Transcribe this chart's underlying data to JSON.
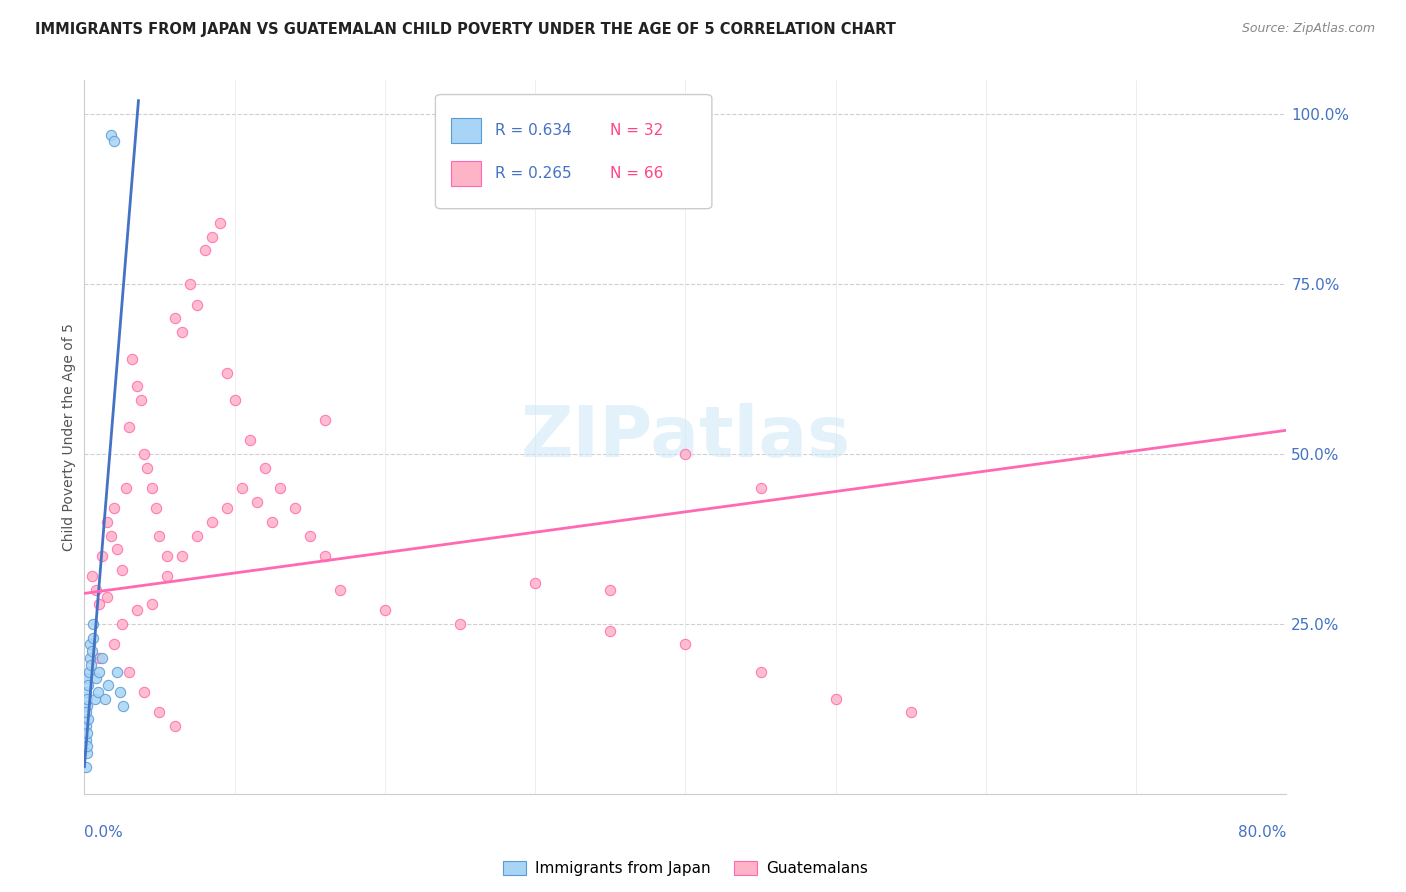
{
  "title": "IMMIGRANTS FROM JAPAN VS GUATEMALAN CHILD POVERTY UNDER THE AGE OF 5 CORRELATION CHART",
  "source": "Source: ZipAtlas.com",
  "ylabel": "Child Poverty Under the Age of 5",
  "right_yticks": [
    "100.0%",
    "75.0%",
    "50.0%",
    "25.0%"
  ],
  "right_ytick_vals": [
    1.0,
    0.75,
    0.5,
    0.25
  ],
  "watermark": "ZIPatlas",
  "background_color": "#ffffff",
  "scatter_japan_color": "#a8d4f5",
  "scatter_japan_edge": "#5b9bd5",
  "scatter_guatemalan_color": "#ffb3c6",
  "scatter_guatemalan_edge": "#ff69b4",
  "line_japan_color": "#4472c4",
  "line_guatemalan_color": "#ff69b4",
  "legend_color1": "#a8d4f5",
  "legend_edge1": "#5b9bd5",
  "legend_color2": "#ffb3c6",
  "legend_edge2": "#ff69b4",
  "xlim": [
    0.0,
    0.8
  ],
  "ylim": [
    0.0,
    1.05
  ],
  "japan_x": [
    0.0008,
    0.0015,
    0.001,
    0.0012,
    0.002,
    0.0018,
    0.0022,
    0.0015,
    0.001,
    0.0008,
    0.0012,
    0.0018,
    0.0025,
    0.003,
    0.0035,
    0.004,
    0.0045,
    0.005,
    0.0055,
    0.006,
    0.007,
    0.008,
    0.009,
    0.01,
    0.012,
    0.014,
    0.016,
    0.018,
    0.02,
    0.022,
    0.024,
    0.026
  ],
  "japan_y": [
    0.04,
    0.06,
    0.08,
    0.1,
    0.07,
    0.09,
    0.11,
    0.13,
    0.15,
    0.17,
    0.12,
    0.14,
    0.16,
    0.18,
    0.2,
    0.22,
    0.19,
    0.21,
    0.23,
    0.25,
    0.14,
    0.17,
    0.15,
    0.18,
    0.2,
    0.14,
    0.16,
    0.97,
    0.96,
    0.18,
    0.15,
    0.13
  ],
  "guatemalan_x": [
    0.005,
    0.008,
    0.01,
    0.012,
    0.015,
    0.018,
    0.02,
    0.022,
    0.025,
    0.028,
    0.03,
    0.032,
    0.035,
    0.038,
    0.04,
    0.042,
    0.045,
    0.048,
    0.05,
    0.055,
    0.06,
    0.065,
    0.07,
    0.075,
    0.08,
    0.085,
    0.09,
    0.095,
    0.1,
    0.11,
    0.12,
    0.13,
    0.14,
    0.15,
    0.16,
    0.17,
    0.2,
    0.25,
    0.3,
    0.35,
    0.4,
    0.45,
    0.01,
    0.02,
    0.03,
    0.04,
    0.05,
    0.06,
    0.025,
    0.035,
    0.015,
    0.045,
    0.055,
    0.065,
    0.075,
    0.085,
    0.095,
    0.105,
    0.115,
    0.125,
    0.35,
    0.4,
    0.45,
    0.5,
    0.55,
    0.16
  ],
  "guatemalan_y": [
    0.32,
    0.3,
    0.28,
    0.35,
    0.4,
    0.38,
    0.42,
    0.36,
    0.33,
    0.45,
    0.54,
    0.64,
    0.6,
    0.58,
    0.5,
    0.48,
    0.45,
    0.42,
    0.38,
    0.35,
    0.7,
    0.68,
    0.75,
    0.72,
    0.8,
    0.82,
    0.84,
    0.62,
    0.58,
    0.52,
    0.48,
    0.45,
    0.42,
    0.38,
    0.35,
    0.3,
    0.27,
    0.25,
    0.31,
    0.3,
    0.5,
    0.45,
    0.2,
    0.22,
    0.18,
    0.15,
    0.12,
    0.1,
    0.25,
    0.27,
    0.29,
    0.28,
    0.32,
    0.35,
    0.38,
    0.4,
    0.42,
    0.45,
    0.43,
    0.4,
    0.24,
    0.22,
    0.18,
    0.14,
    0.12,
    0.55
  ],
  "xline_japan": [
    0.0,
    0.036
  ],
  "yline_japan": [
    0.04,
    1.02
  ],
  "xline_guatemalan": [
    0.0,
    0.8
  ],
  "yline_guatemalan": [
    0.295,
    0.535
  ]
}
